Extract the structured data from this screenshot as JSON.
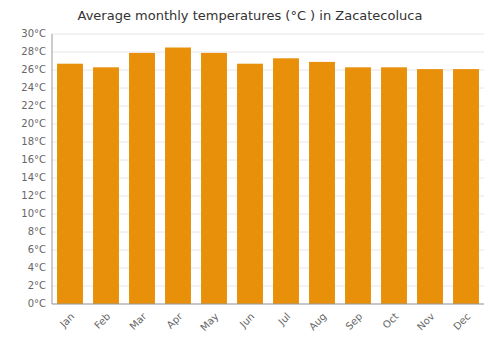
{
  "chart_data": {
    "type": "bar",
    "title": "Average monthly temperatures (°C ) in Zacatecoluca",
    "categories": [
      "Jan",
      "Feb",
      "Mar",
      "Apr",
      "May",
      "Jun",
      "Jul",
      "Aug",
      "Sep",
      "Oct",
      "Nov",
      "Dec"
    ],
    "values": [
      26.7,
      26.3,
      27.9,
      28.5,
      27.9,
      26.7,
      27.3,
      26.9,
      26.3,
      26.3,
      26.1,
      26.1
    ],
    "color": "#E8900A",
    "ylim": [
      0,
      30
    ],
    "yticks": [
      {
        "value": 0,
        "label": "0°C"
      },
      {
        "value": 2,
        "label": "2°C"
      },
      {
        "value": 4,
        "label": "4°C"
      },
      {
        "value": 6,
        "label": "6°C"
      },
      {
        "value": 8,
        "label": "8°C"
      },
      {
        "value": 10,
        "label": "10°C"
      },
      {
        "value": 12,
        "label": "12°C"
      },
      {
        "value": 14,
        "label": "14°C"
      },
      {
        "value": 16,
        "label": "16°C"
      },
      {
        "value": 18,
        "label": "18°C"
      },
      {
        "value": 20,
        "label": "20°C"
      },
      {
        "value": 22,
        "label": "22°C"
      },
      {
        "value": 24,
        "label": "24°C"
      },
      {
        "value": 26,
        "label": "26°C"
      },
      {
        "value": 28,
        "label": "28°C"
      },
      {
        "value": 30,
        "label": "30°C"
      }
    ],
    "grid": true
  }
}
